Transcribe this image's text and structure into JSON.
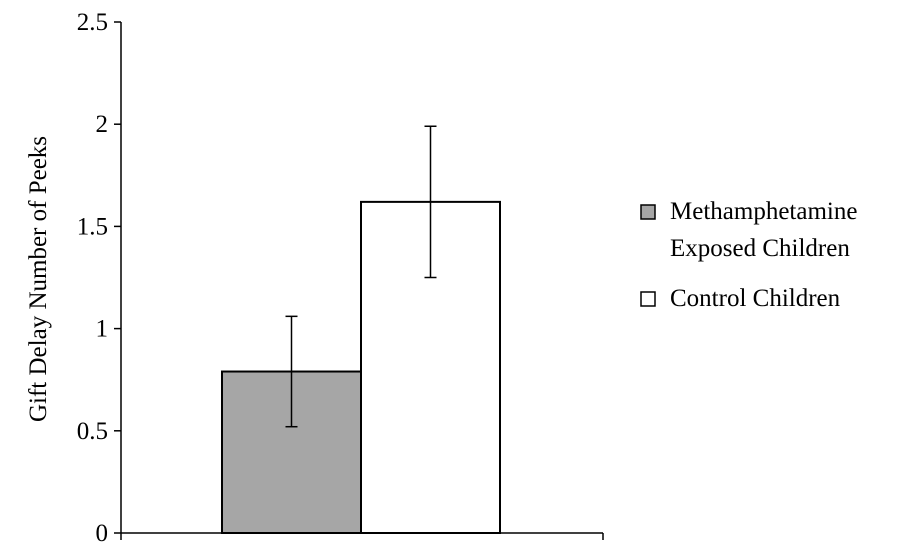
{
  "chart_data": {
    "type": "bar",
    "title": "",
    "xlabel": "",
    "ylabel": "Gift Delay Number of Peeks",
    "ylim": [
      0,
      2.5
    ],
    "yticks": [
      "0",
      "0.5",
      "1",
      "1.5",
      "2",
      "2.5"
    ],
    "grid": false,
    "legend_position": "right",
    "series": [
      {
        "name_lines": [
          "Methamphetamine",
          "Exposed Children"
        ],
        "value": 0.79,
        "error": 0.27,
        "color": "#a6a6a6"
      },
      {
        "name_lines": [
          "Control Children"
        ],
        "value": 1.62,
        "error": 0.37,
        "color": "#ffffff"
      }
    ]
  }
}
